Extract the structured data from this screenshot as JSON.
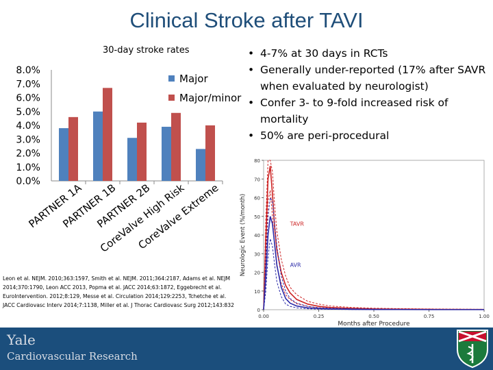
{
  "slide": {
    "title": "Clinical Stroke after TAVI",
    "bullets": [
      "4-7% at 30 days in RCTs",
      "Generally under-reported (17% after SAVR when evaluated by neurologist)",
      "Confer 3- to 9-fold increased risk of mortality",
      "50% are peri-procedural"
    ],
    "citation": "Leon et al. NEJM. 2010;363:1597, Smith et al. NEJM. 2011;364:2187, Adams et al. NEJM 2014;370:1790, Leon ACC 2013, Popma et al. JACC 2014;63:1872, Eggebrecht et al. EuroIntervention. 2012;8:129, Messe et al. Circulation 2014;129:2253, Tchetche et al. JACC Cardiovasc Interv 2014;7:1138, Miller et al. J Thorac Cardiovasc Surg 2012;143:832",
    "footer": {
      "name": "Yale",
      "subtitle": "Cardiovascular Research"
    },
    "colors": {
      "title": "#1f4e79",
      "major": "#4f81bd",
      "major_minor": "#c0504d",
      "footer": "#1b4e7c"
    }
  },
  "chart_data": [
    {
      "type": "bar",
      "title": "30-day stroke rates",
      "categories": [
        "PARTNER 1A",
        "PARTNER 1B",
        "PARTNER 2B",
        "CoreValve High Risk",
        "CoreValve Extreme"
      ],
      "series": [
        {
          "name": "Major",
          "color": "#4f81bd",
          "values": [
            3.8,
            5.0,
            3.1,
            3.9,
            2.3
          ]
        },
        {
          "name": "Major/minor",
          "color": "#c0504d",
          "values": [
            4.6,
            6.7,
            4.2,
            4.9,
            4.0
          ]
        }
      ],
      "ylim": [
        0,
        8
      ],
      "yticks": [
        "0.0%",
        "1.0%",
        "2.0%",
        "3.0%",
        "4.0%",
        "5.0%",
        "6.0%",
        "7.0%",
        "8.0%"
      ],
      "legend": "top-right",
      "grid": false
    },
    {
      "type": "line",
      "xlabel": "Months after Procedure",
      "ylabel": "Neurologic Event (%/month)",
      "xlim": [
        0,
        1
      ],
      "ylim": [
        0,
        80
      ],
      "xticks": [
        "0.00",
        "0.25",
        "0.50",
        "0.75",
        "1.00"
      ],
      "yticks": [
        "0",
        "10",
        "20",
        "30",
        "40",
        "50",
        "60",
        "70",
        "80"
      ],
      "series": [
        {
          "name": "TAVR",
          "color": "#cc2222",
          "x": [
            0,
            0.01,
            0.02,
            0.03,
            0.04,
            0.05,
            0.06,
            0.08,
            0.1,
            0.12,
            0.15,
            0.2,
            0.25,
            0.3,
            0.4,
            0.5,
            0.6,
            0.75,
            0.9,
            1.0
          ],
          "y": [
            0,
            38,
            70,
            77,
            62,
            44,
            32,
            20,
            13,
            9,
            5.5,
            3,
            1.8,
            1.2,
            0.7,
            0.4,
            0.3,
            0.2,
            0.1,
            0.1
          ],
          "ci_upper": [
            0,
            48,
            80,
            80,
            74,
            56,
            42,
            27,
            18,
            12,
            8,
            4.5,
            3,
            2,
            1.2,
            0.8,
            0.6,
            0.4,
            0.3,
            0.2
          ],
          "ci_lower": [
            0,
            28,
            58,
            64,
            50,
            34,
            23,
            14,
            8,
            5.5,
            3.2,
            1.8,
            1,
            0.6,
            0.3,
            0.2,
            0.1,
            0.1,
            0.05,
            0.05
          ]
        },
        {
          "name": "AVR",
          "color": "#2a2aa8",
          "x": [
            0,
            0.01,
            0.02,
            0.03,
            0.04,
            0.05,
            0.06,
            0.08,
            0.1,
            0.12,
            0.15,
            0.2,
            0.25,
            0.3,
            0.4,
            0.5,
            0.6,
            0.75,
            0.9,
            1.0
          ],
          "y": [
            0,
            18,
            40,
            50,
            46,
            35,
            24,
            12,
            6,
            3.5,
            2,
            1,
            0.6,
            0.4,
            0.2,
            0.1,
            0.1,
            0.05,
            0.05,
            0.05
          ],
          "ci_upper": [
            0,
            26,
            50,
            60,
            58,
            46,
            34,
            18,
            10,
            6,
            3.5,
            1.8,
            1.1,
            0.8,
            0.5,
            0.3,
            0.2,
            0.1,
            0.1,
            0.1
          ],
          "ci_lower": [
            0,
            10,
            28,
            38,
            34,
            24,
            15,
            7,
            3,
            1.8,
            1,
            0.5,
            0.3,
            0.2,
            0.1,
            0.05,
            0.05,
            0.02,
            0.02,
            0.02
          ]
        }
      ]
    }
  ]
}
